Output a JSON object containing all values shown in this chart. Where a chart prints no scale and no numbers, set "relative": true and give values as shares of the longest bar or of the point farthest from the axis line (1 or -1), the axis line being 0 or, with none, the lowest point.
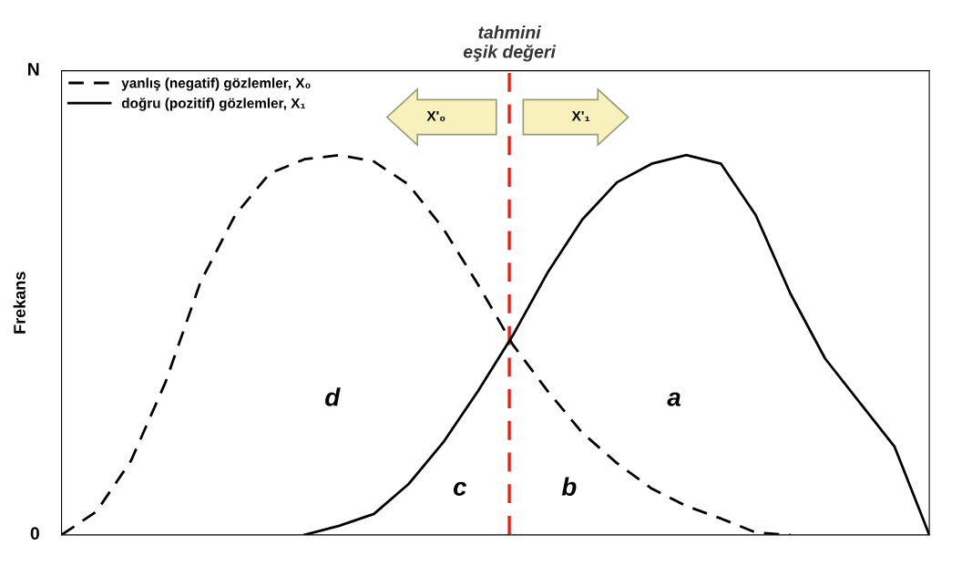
{
  "chart_data": {
    "type": "line",
    "ylabel": "Frekans",
    "relative": true,
    "legend": "top left",
    "marker": "none",
    "categories": [
      null,
      null,
      null,
      null,
      null,
      null,
      null,
      null,
      null,
      null,
      null,
      null,
      null,
      null,
      null,
      null,
      null,
      null,
      null,
      null,
      null,
      null,
      null,
      null,
      null,
      null
    ],
    "series": [
      {
        "name": "yanlış (negatif) gözlemler, X₀",
        "color": "#000000",
        "line_style": "dashed",
        "values": [
          0,
          0.061,
          0.195,
          0.403,
          0.665,
          0.842,
          0.952,
          0.989,
          1,
          0.983,
          0.922,
          0.806,
          0.659,
          0.501,
          0.379,
          0.269,
          0.189,
          0.122,
          0.076,
          0.043,
          0.006,
          0,
          null,
          null,
          null,
          null
        ]
      },
      {
        "name": "doğru (pozitif) gözlemler, X₁",
        "color": "#000000",
        "line_style": "solid",
        "values": [
          null,
          null,
          null,
          null,
          null,
          null,
          null,
          0,
          0.024,
          0.055,
          0.134,
          0.244,
          0.379,
          0.525,
          0.69,
          0.83,
          0.928,
          0.977,
          1,
          0.977,
          0.842,
          0.635,
          0.464,
          0.348,
          0.232,
          0
        ]
      }
    ],
    "annotations": [
      "tahmini\neşik değeri",
      "0",
      "N",
      "X'₀",
      "X'₁",
      "d",
      "a",
      "c",
      "b"
    ]
  }
}
